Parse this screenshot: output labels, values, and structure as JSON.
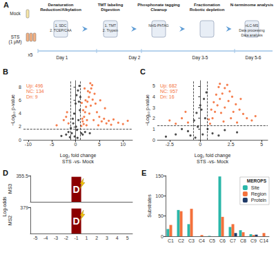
{
  "diagram": {
    "panel": "A",
    "samples": [
      [
        "Mock"
      ],
      [
        "STS",
        "(1 μM)"
      ]
    ],
    "replicates": "x5",
    "steps": [
      {
        "title": [
          "Denaturation",
          "Reduction/Alkylation"
        ],
        "items": [
          "1. SDC",
          "2. TCEP/CAA"
        ]
      },
      {
        "title": [
          "TMT labeling",
          "Digestion"
        ],
        "items": [
          "1. TMT",
          "2. Trypsin"
        ]
      },
      {
        "title": [
          "Phosphonate tagging",
          "Cleanup"
        ],
        "items": [
          "NHS-PhTAG"
        ]
      },
      {
        "title": [
          "Fractionation",
          "Robotic depletion"
        ]
      },
      {
        "title": [
          "N-terminome analysis"
        ],
        "items": [
          "nLC-MS",
          "Data processing",
          "Data analysis"
        ]
      }
    ],
    "days": [
      "Day 1",
      "Day 2",
      "Day 3-5",
      "Day 5-6"
    ]
  },
  "chart_data": [
    {
      "panel": "B",
      "type": "scatter",
      "xlabel": "Log₂ fold change\nSTS -vs- Mock",
      "ylabel": "−Log₁₀ p-value",
      "xlim": [
        -11,
        12
      ],
      "xticks": [
        -10,
        -5,
        0,
        5,
        10
      ],
      "ylim": [
        0,
        9
      ],
      "yticks": [
        0,
        2,
        4,
        6,
        8
      ],
      "grid": false,
      "annotation": [
        "Up: 496",
        "NC: 134",
        "Dn: 9"
      ],
      "annotation_color": "#f4713c",
      "thresholds": {
        "x": [
          -1,
          1
        ],
        "y": 1.7
      },
      "series": [
        {
          "name": "NC",
          "color": "#3a3a3a",
          "points": [
            [
              -0.8,
              1.0
            ],
            [
              -0.5,
              2.5
            ],
            [
              -0.3,
              4.0
            ],
            [
              0.0,
              5.5
            ],
            [
              0.2,
              6.8
            ],
            [
              0.5,
              7.5
            ],
            [
              0.8,
              8.2
            ],
            [
              -1.5,
              1.2
            ],
            [
              -2.0,
              0.8
            ],
            [
              0.3,
              1.5
            ],
            [
              0.6,
              3.0
            ],
            [
              0.9,
              4.5
            ],
            [
              -0.2,
              0.5
            ],
            [
              -1.0,
              1.8
            ],
            [
              1.2,
              1.0
            ],
            [
              2.0,
              1.2
            ],
            [
              3.0,
              1.0
            ],
            [
              -3.0,
              0.6
            ],
            [
              0.4,
              0.3
            ],
            [
              1.5,
              0.8
            ],
            [
              0.7,
              5.8
            ],
            [
              -0.6,
              3.2
            ],
            [
              0.1,
              2.0
            ],
            [
              -1.2,
              0.4
            ],
            [
              1.0,
              6.5
            ]
          ]
        },
        {
          "name": "Up",
          "color": "#f4713c",
          "points": [
            [
              1.2,
              2.1
            ],
            [
              1.5,
              2.8
            ],
            [
              1.8,
              3.5
            ],
            [
              2.0,
              4.2
            ],
            [
              2.2,
              5.0
            ],
            [
              2.5,
              5.8
            ],
            [
              2.8,
              6.5
            ],
            [
              3.0,
              7.2
            ],
            [
              3.3,
              7.8
            ],
            [
              3.5,
              8.3
            ],
            [
              1.4,
              3.2
            ],
            [
              1.7,
              2.4
            ],
            [
              2.4,
              3.0
            ],
            [
              2.9,
              4.0
            ],
            [
              3.2,
              5.2
            ],
            [
              3.6,
              6.1
            ],
            [
              4.0,
              7.0
            ],
            [
              1.6,
              4.5
            ],
            [
              2.1,
              6.0
            ],
            [
              2.6,
              7.4
            ],
            [
              3.1,
              8.6
            ],
            [
              4.2,
              5.5
            ],
            [
              4.5,
              4.2
            ],
            [
              5.0,
              3.5
            ],
            [
              5.5,
              2.8
            ],
            [
              6.0,
              3.2
            ],
            [
              6.5,
              2.5
            ],
            [
              7.0,
              2.9
            ],
            [
              7.5,
              2.3
            ],
            [
              8.0,
              3.1
            ],
            [
              9.0,
              2.6
            ],
            [
              10.0,
              2.4
            ],
            [
              11.0,
              2.9
            ],
            [
              4.8,
              2.2
            ],
            [
              3.8,
              3.0
            ],
            [
              2.3,
              2.2
            ],
            [
              1.9,
              7.8
            ],
            [
              1.3,
              5.6
            ],
            [
              5.2,
              6.0
            ],
            [
              6.2,
              4.8
            ]
          ]
        },
        {
          "name": "Dn",
          "color": "#f4713c",
          "points": [
            [
              -1.5,
              2.5
            ],
            [
              -2.0,
              3.5
            ],
            [
              -2.5,
              3.0
            ],
            [
              -4.0,
              2.2
            ],
            [
              -1.8,
              4.2
            ]
          ]
        }
      ]
    },
    {
      "panel": "C",
      "type": "scatter",
      "xlabel": "Log₂ fold change\nSTS -vs- Mock",
      "ylabel": "−Log₁₀ p-value",
      "xlim": [
        -3.5,
        5.5
      ],
      "xticks": [
        -2.5,
        0,
        2.5,
        5
      ],
      "ylim": [
        0,
        5.5
      ],
      "yticks": [
        0,
        1,
        2,
        3,
        4,
        5
      ],
      "grid": false,
      "annotation": [
        "Up: 682",
        "NC: 957",
        "Dn: 16"
      ],
      "annotation_color": "#f4713c",
      "thresholds": {
        "x": [
          -0.58,
          0.58
        ],
        "y": 1.3
      },
      "series": [
        {
          "name": "NC",
          "color": "#3a3a3a",
          "points": [
            [
              -0.5,
              1.8
            ],
            [
              -0.3,
              2.5
            ],
            [
              0,
              3.2
            ],
            [
              0.3,
              3.8
            ],
            [
              0.5,
              4.4
            ],
            [
              -1.0,
              0.8
            ],
            [
              -2.0,
              0.5
            ],
            [
              -1.5,
              1.0
            ],
            [
              0.2,
              0.5
            ],
            [
              0.6,
              1.0
            ],
            [
              1.0,
              0.6
            ],
            [
              2.0,
              0.9
            ],
            [
              3.0,
              0.7
            ],
            [
              -0.8,
              0.4
            ],
            [
              0.4,
              2.0
            ],
            [
              -0.2,
              1.2
            ],
            [
              1.5,
              0.4
            ],
            [
              -2.8,
              0.3
            ],
            [
              0.1,
              2.8
            ],
            [
              -0.4,
              0.2
            ]
          ]
        },
        {
          "name": "Up",
          "color": "#f4713c",
          "points": [
            [
              0.8,
              1.5
            ],
            [
              1.0,
              2.0
            ],
            [
              1.2,
              2.6
            ],
            [
              1.4,
              3.2
            ],
            [
              1.6,
              3.8
            ],
            [
              1.8,
              4.3
            ],
            [
              2.0,
              4.8
            ],
            [
              2.2,
              5.1
            ],
            [
              1.1,
              3.5
            ],
            [
              1.3,
              4.2
            ],
            [
              1.5,
              4.9
            ],
            [
              1.7,
              2.5
            ],
            [
              2.0,
              3.0
            ],
            [
              2.3,
              3.6
            ],
            [
              2.6,
              4.0
            ],
            [
              2.9,
              3.3
            ],
            [
              3.2,
              2.8
            ],
            [
              3.5,
              2.4
            ],
            [
              3.8,
              2.0
            ],
            [
              4.2,
              1.8
            ],
            [
              2.5,
              2.0
            ],
            [
              3.0,
              1.6
            ],
            [
              0.9,
              2.8
            ],
            [
              1.9,
              1.7
            ],
            [
              2.7,
              2.6
            ],
            [
              4.5,
              2.2
            ],
            [
              0.7,
              1.9
            ],
            [
              1.6,
              5.2
            ],
            [
              2.4,
              4.5
            ],
            [
              3.3,
              3.8
            ]
          ]
        },
        {
          "name": "Dn",
          "color": "#f4713c",
          "points": [
            [
              -1.0,
              1.6
            ],
            [
              -1.5,
              2.0
            ],
            [
              -2.0,
              1.5
            ],
            [
              -1.2,
              2.6
            ],
            [
              -2.5,
              1.8
            ]
          ]
        }
      ]
    },
    {
      "panel": "D",
      "type": "bar",
      "ylabel": "Log-odds",
      "categories": [
        "-5",
        "-4",
        "-3",
        "-2",
        "-1",
        "1",
        "2",
        "3",
        "4",
        "5"
      ],
      "tick_labels": "x",
      "series": [
        {
          "name": "MS3",
          "color": "#8b0000",
          "letter": "D",
          "ylim": [
            0,
            355.5
          ],
          "yticks": [
            355.5
          ],
          "values": [
            null,
            null,
            null,
            null,
            340,
            null,
            null,
            null,
            null,
            null
          ]
        },
        {
          "name": "MS2",
          "color": "#8b0000",
          "letter": "D",
          "ylim": [
            0,
            379
          ],
          "yticks": [
            379
          ],
          "values": [
            null,
            null,
            null,
            null,
            362,
            null,
            null,
            null,
            null,
            null
          ]
        }
      ]
    },
    {
      "panel": "E",
      "type": "bar",
      "ylabel": "Substrates",
      "categories": [
        "C1",
        "C2",
        "C3",
        "C4",
        "C5",
        "C6",
        "C7",
        "C8",
        "C9",
        "C14"
      ],
      "ylim": [
        0,
        150
      ],
      "yticks": [
        0,
        50,
        100,
        150
      ],
      "legend": "top-right",
      "legend_title": "MEROPS",
      "series": [
        {
          "name": "Site",
          "color": "#2ab7a9",
          "values": [
            18,
            65,
            30,
            0,
            1,
            148,
            23,
            15,
            5,
            0
          ]
        },
        {
          "name": "Region",
          "color": "#f4713c",
          "values": [
            28,
            62,
            68,
            3,
            0,
            48,
            30,
            10,
            3,
            8
          ]
        },
        {
          "name": "Protein",
          "color": "#1f3a68",
          "values": [
            0,
            0,
            0,
            0,
            0,
            0,
            8,
            0,
            4,
            0
          ]
        }
      ]
    }
  ]
}
